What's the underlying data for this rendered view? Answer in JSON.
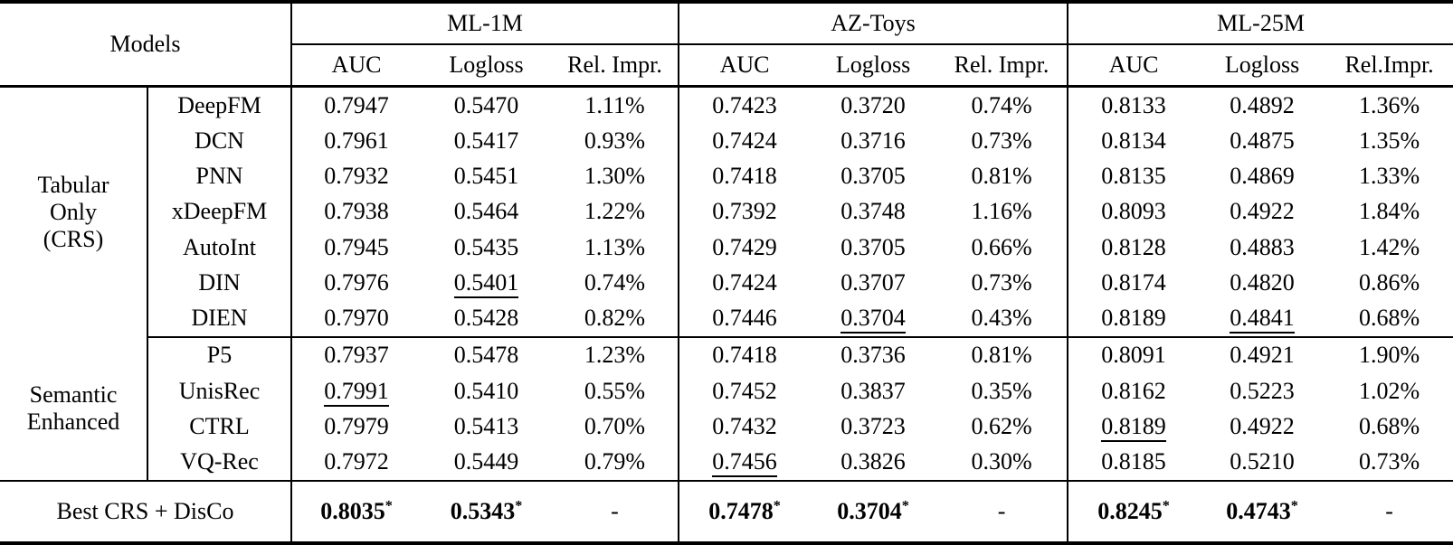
{
  "colors": {
    "text": "#000000",
    "background": "#ffffff",
    "rule": "#000000"
  },
  "header": {
    "models_label": "Models",
    "groups": [
      {
        "label": "ML-1M",
        "cols": [
          "AUC",
          "Logloss",
          "Rel. Impr."
        ]
      },
      {
        "label": "AZ-Toys",
        "cols": [
          "AUC",
          "Logloss",
          "Rel. Impr."
        ]
      },
      {
        "label": "ML-25M",
        "cols": [
          "AUC",
          "Logloss",
          "Rel.Impr."
        ]
      }
    ]
  },
  "sections": [
    {
      "group_lines": [
        "Tabular",
        "Only",
        "(CRS)"
      ],
      "rows": [
        {
          "model": "DeepFM",
          "values": [
            "0.7947",
            "0.5470",
            "1.11%",
            "0.7423",
            "0.3720",
            "0.74%",
            "0.8133",
            "0.4892",
            "1.36%"
          ],
          "underline": []
        },
        {
          "model": "DCN",
          "values": [
            "0.7961",
            "0.5417",
            "0.93%",
            "0.7424",
            "0.3716",
            "0.73%",
            "0.8134",
            "0.4875",
            "1.35%"
          ],
          "underline": []
        },
        {
          "model": "PNN",
          "values": [
            "0.7932",
            "0.5451",
            "1.30%",
            "0.7418",
            "0.3705",
            "0.81%",
            "0.8135",
            "0.4869",
            "1.33%"
          ],
          "underline": []
        },
        {
          "model": "xDeepFM",
          "values": [
            "0.7938",
            "0.5464",
            "1.22%",
            "0.7392",
            "0.3748",
            "1.16%",
            "0.8093",
            "0.4922",
            "1.84%"
          ],
          "underline": []
        },
        {
          "model": "AutoInt",
          "values": [
            "0.7945",
            "0.5435",
            "1.13%",
            "0.7429",
            "0.3705",
            "0.66%",
            "0.8128",
            "0.4883",
            "1.42%"
          ],
          "underline": []
        },
        {
          "model": "DIN",
          "values": [
            "0.7976",
            "0.5401",
            "0.74%",
            "0.7424",
            "0.3707",
            "0.73%",
            "0.8174",
            "0.4820",
            "0.86%"
          ],
          "underline": [
            1
          ]
        },
        {
          "model": "DIEN",
          "values": [
            "0.7970",
            "0.5428",
            "0.82%",
            "0.7446",
            "0.3704",
            "0.43%",
            "0.8189",
            "0.4841",
            "0.68%"
          ],
          "underline": [
            4,
            7
          ]
        }
      ]
    },
    {
      "group_lines": [
        "Semantic",
        "Enhanced"
      ],
      "rows": [
        {
          "model": "P5",
          "values": [
            "0.7937",
            "0.5478",
            "1.23%",
            "0.7418",
            "0.3736",
            "0.81%",
            "0.8091",
            "0.4921",
            "1.90%"
          ],
          "underline": []
        },
        {
          "model": "UnisRec",
          "values": [
            "0.7991",
            "0.5410",
            "0.55%",
            "0.7452",
            "0.3837",
            "0.35%",
            "0.8162",
            "0.5223",
            "1.02%"
          ],
          "underline": [
            0
          ]
        },
        {
          "model": "CTRL",
          "values": [
            "0.7979",
            "0.5413",
            "0.70%",
            "0.7432",
            "0.3723",
            "0.62%",
            "0.8189",
            "0.4922",
            "0.68%"
          ],
          "underline": [
            6
          ]
        },
        {
          "model": "VQ-Rec",
          "values": [
            "0.7972",
            "0.5449",
            "0.79%",
            "0.7456",
            "0.3826",
            "0.30%",
            "0.8185",
            "0.5210",
            "0.73%"
          ],
          "underline": [
            3
          ]
        }
      ]
    }
  ],
  "footer": {
    "label": "Best CRS + DisCo",
    "values": [
      {
        "text": "0.8035",
        "star": true
      },
      {
        "text": "0.5343",
        "star": true
      },
      {
        "text": "-",
        "star": false
      },
      {
        "text": "0.7478",
        "star": true
      },
      {
        "text": "0.3704",
        "star": true
      },
      {
        "text": "-",
        "star": false
      },
      {
        "text": "0.8245",
        "star": true
      },
      {
        "text": "0.4743",
        "star": true
      },
      {
        "text": "-",
        "star": false
      }
    ]
  }
}
